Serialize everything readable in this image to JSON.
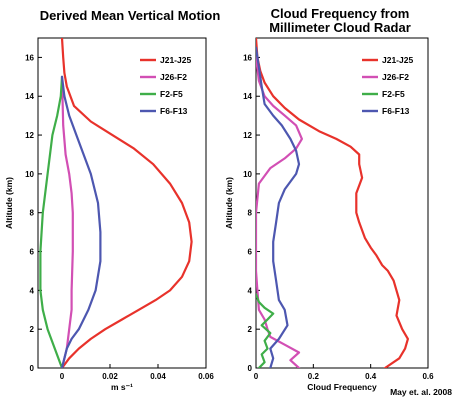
{
  "credit": "May et. al. 2008",
  "chart_data": [
    {
      "type": "line",
      "title": "Derived Mean Vertical Motion",
      "xlabel": "m s⁻¹",
      "ylabel": "Altitude (km)",
      "xlim": [
        -0.01,
        0.06
      ],
      "ylim": [
        0,
        17
      ],
      "xticks": [
        "0",
        "0.02",
        "0.04",
        "0.06"
      ],
      "xtick_values": [
        0,
        0.02,
        0.04,
        0.06
      ],
      "yticks": [
        0,
        2,
        4,
        6,
        8,
        10,
        12,
        14,
        16
      ],
      "grid": false,
      "legend": "top-right",
      "series": [
        {
          "name": "J21-J25",
          "color": "#e8322b",
          "x": [
            0,
            0.003,
            0.007,
            0.012,
            0.018,
            0.025,
            0.032,
            0.039,
            0.045,
            0.05,
            0.053,
            0.054,
            0.053,
            0.05,
            0.045,
            0.038,
            0.03,
            0.021,
            0.012,
            0.005,
            0.002,
            0.001,
            0.0005,
            0
          ],
          "y": [
            0,
            0.5,
            1,
            1.5,
            2,
            2.5,
            3,
            3.5,
            4,
            4.7,
            5.5,
            6.5,
            7.5,
            8.5,
            9.5,
            10.5,
            11.3,
            12,
            12.7,
            13.5,
            14.5,
            15.2,
            16,
            17
          ]
        },
        {
          "name": "J26-F2",
          "color": "#d24fb4",
          "x": [
            0,
            0.002,
            0.003,
            0.004,
            0.004,
            0.0045,
            0.0045,
            0.004,
            0.003,
            0.0015,
            0.0005,
            0
          ],
          "y": [
            0,
            1,
            2,
            3,
            4,
            6,
            8,
            9,
            10,
            11,
            12.5,
            15
          ]
        },
        {
          "name": "F2-F5",
          "color": "#3fae49",
          "x": [
            0,
            -0.003,
            -0.006,
            -0.008,
            -0.009,
            -0.009,
            -0.008,
            -0.006,
            -0.004,
            -0.002,
            -0.0005,
            0
          ],
          "y": [
            0,
            1,
            2,
            3,
            4,
            6,
            8,
            10,
            12,
            13,
            14,
            15
          ]
        },
        {
          "name": "F6-F13",
          "color": "#4d57b0",
          "x": [
            0,
            0.002,
            0.004,
            0.007,
            0.011,
            0.014,
            0.016,
            0.016,
            0.015,
            0.012,
            0.009,
            0.006,
            0.003,
            0.001,
            0
          ],
          "y": [
            0,
            1,
            1.5,
            2,
            3,
            4,
            5.5,
            7,
            8.5,
            10,
            11,
            12,
            13,
            14,
            15
          ]
        }
      ]
    },
    {
      "type": "line",
      "title": "Cloud Frequency from\nMillimeter Cloud Radar",
      "xlabel": "Cloud Frequency",
      "ylabel": "Altitude (km)",
      "xlim": [
        0,
        0.6
      ],
      "ylim": [
        0,
        17
      ],
      "xticks": [
        "0",
        "0.2",
        "0.4",
        "0.6"
      ],
      "xtick_values": [
        0,
        0.2,
        0.4,
        0.6
      ],
      "yticks": [
        0,
        2,
        4,
        6,
        8,
        10,
        12,
        14,
        16
      ],
      "grid": false,
      "legend": "top-right",
      "series": [
        {
          "name": "J21-J25",
          "color": "#e8322b",
          "x": [
            0.45,
            0.5,
            0.52,
            0.53,
            0.51,
            0.49,
            0.5,
            0.48,
            0.46,
            0.44,
            0.42,
            0.4,
            0.38,
            0.36,
            0.35,
            0.35,
            0.37,
            0.36,
            0.36,
            0.33,
            0.28,
            0.22,
            0.15,
            0.1,
            0.06,
            0.03,
            0.015,
            0.005,
            0
          ],
          "y": [
            0,
            0.5,
            1,
            1.5,
            2,
            2.7,
            3.5,
            4.5,
            5,
            5.3,
            5.8,
            6.2,
            6.7,
            7.5,
            8,
            9,
            9.8,
            10.5,
            11,
            11.4,
            11.8,
            12.2,
            12.8,
            13.4,
            14,
            14.7,
            15.3,
            16,
            17
          ]
        },
        {
          "name": "J26-F2",
          "color": "#d24fb4",
          "x": [
            0.15,
            0.12,
            0.15,
            0.1,
            0.05,
            0.04,
            0.03,
            0.01,
            0.005,
            0,
            0,
            0,
            0.01,
            0.05,
            0.1,
            0.14,
            0.16,
            0.14,
            0.1,
            0.06,
            0.03,
            0.01,
            0
          ],
          "y": [
            0,
            0.4,
            0.8,
            1.2,
            1.6,
            2,
            2.5,
            3,
            4,
            5,
            7,
            8,
            9.5,
            10.3,
            10.8,
            11.3,
            11.8,
            12.5,
            13,
            13.5,
            14,
            14.8,
            16
          ]
        },
        {
          "name": "F2-F5",
          "color": "#3fae49",
          "x": [
            0.01,
            0.03,
            0.02,
            0.04,
            0.03,
            0.05,
            0.02,
            0.04,
            0.06,
            0.03,
            0.01,
            0
          ],
          "y": [
            0,
            0.3,
            0.7,
            1,
            1.4,
            1.8,
            2.2,
            2.5,
            2.8,
            3.1,
            3.4,
            3.8
          ]
        },
        {
          "name": "F6-F13",
          "color": "#4d57b0",
          "x": [
            0.05,
            0.06,
            0.05,
            0.08,
            0.11,
            0.1,
            0.08,
            0.07,
            0.06,
            0.06,
            0.07,
            0.08,
            0.1,
            0.12,
            0.14,
            0.15,
            0.14,
            0.12,
            0.09,
            0.06,
            0.03,
            0.02,
            0.01,
            0
          ],
          "y": [
            0,
            0.5,
            1,
            1.5,
            2.2,
            3,
            3.5,
            4.5,
            5.5,
            6.5,
            7.5,
            8.5,
            9.2,
            9.6,
            10,
            10.5,
            11.2,
            11.8,
            12.5,
            13,
            13.6,
            14.5,
            15.5,
            16.5
          ]
        }
      ]
    }
  ]
}
